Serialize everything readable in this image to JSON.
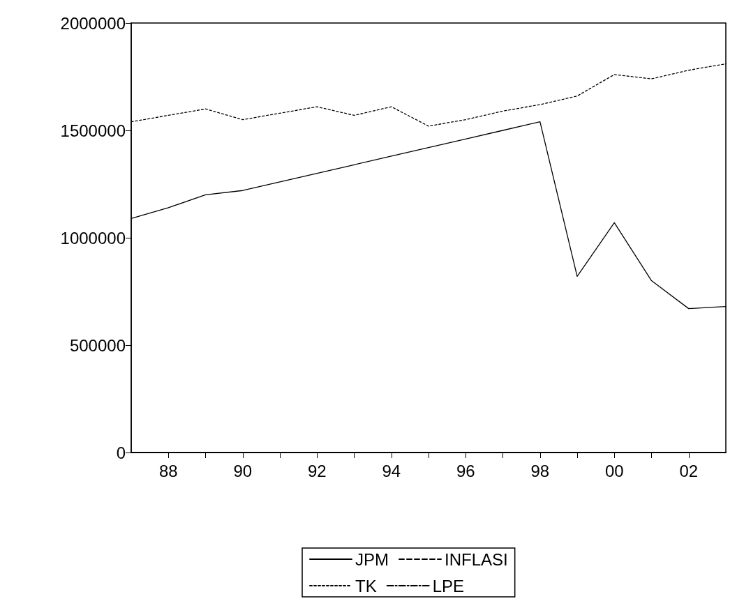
{
  "chart_data": {
    "type": "line",
    "x": [
      1987,
      1988,
      1989,
      1990,
      1991,
      1992,
      1993,
      1994,
      1995,
      1996,
      1997,
      1998,
      1999,
      2000,
      2001,
      2002,
      2003
    ],
    "series": [
      {
        "name": "JPM",
        "color": "#000000",
        "line_style": "solid",
        "values": [
          1090000,
          1140000,
          1200000,
          1220000,
          1260000,
          1300000,
          1340000,
          1380000,
          1420000,
          1460000,
          1500000,
          1540000,
          820000,
          1070000,
          800000,
          670000,
          680000
        ]
      },
      {
        "name": "INFLASI",
        "color": "#000000",
        "line_style": "dashed",
        "values": [
          null,
          null,
          null,
          null,
          null,
          null,
          null,
          null,
          null,
          null,
          null,
          null,
          null,
          null,
          null,
          null,
          null
        ]
      },
      {
        "name": "TK",
        "color": "#000000",
        "line_style": "dotted",
        "values": [
          1540000,
          1570000,
          1600000,
          1550000,
          1580000,
          1610000,
          1570000,
          1610000,
          1520000,
          1550000,
          1590000,
          1620000,
          1660000,
          1760000,
          1740000,
          1780000,
          1810000
        ]
      },
      {
        "name": "LPE",
        "color": "#000000",
        "line_style": "dashdot",
        "values": [
          null,
          null,
          null,
          null,
          null,
          null,
          null,
          null,
          null,
          null,
          null,
          null,
          null,
          null,
          null,
          null,
          null
        ]
      }
    ],
    "xlim": [
      1987,
      2003
    ],
    "xticks": [
      {
        "value": 1988,
        "label": "88"
      },
      {
        "value": 1989,
        "label": null
      },
      {
        "value": 1990,
        "label": "90"
      },
      {
        "value": 1991,
        "label": null
      },
      {
        "value": 1992,
        "label": "92"
      },
      {
        "value": 1993,
        "label": null
      },
      {
        "value": 1994,
        "label": "94"
      },
      {
        "value": 1995,
        "label": null
      },
      {
        "value": 1996,
        "label": "96"
      },
      {
        "value": 1997,
        "label": null
      },
      {
        "value": 1998,
        "label": "98"
      },
      {
        "value": 1999,
        "label": null
      },
      {
        "value": 2000,
        "label": "00"
      },
      {
        "value": 2001,
        "label": null
      },
      {
        "value": 2002,
        "label": "02"
      }
    ],
    "ylim": [
      0,
      2000000
    ],
    "yticks": [
      0,
      500000,
      1000000,
      1500000,
      2000000
    ],
    "grid": false,
    "legend": "bottom",
    "marker": "none"
  }
}
